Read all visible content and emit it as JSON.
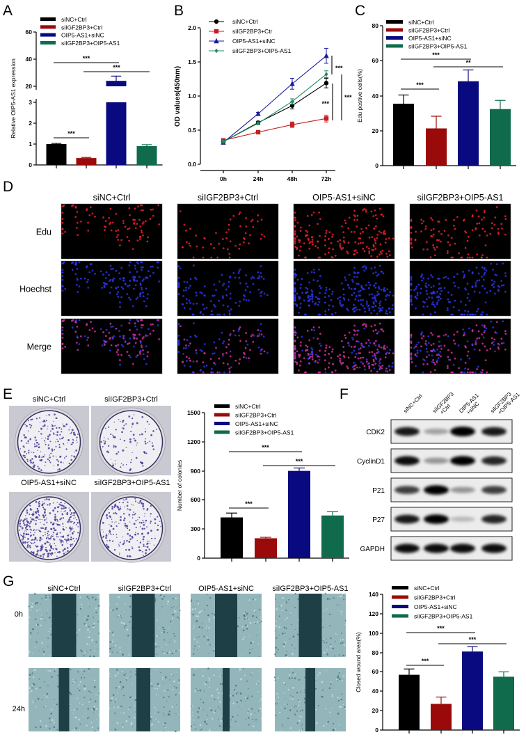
{
  "panels": {
    "A": "A",
    "B": "B",
    "C": "C",
    "D": "D",
    "E": "E",
    "F": "F",
    "G": "G"
  },
  "colors": {
    "siNC+Ctrl": "#000000",
    "siIGF2BP3+Ctrl": "#9b0a0a",
    "OIP5-AS1+siNC": "#0a0a80",
    "siIGF2BP3+OIP5-AS1": "#0f6b4c"
  },
  "chart_data": [
    {
      "id": "A",
      "type": "bar",
      "title": "",
      "ylabel": "Relative OIP5-AS1 expression",
      "xlabel": "",
      "legend": [
        "siNC+Ctrl",
        "siIGF2BP3+Ctrl",
        "OIP5-AS1+siNC",
        "siIGF2BP3+OIP5-AS1"
      ],
      "legend_placement": "top-left",
      "categories": [
        "siNC+Ctrl",
        "siIGF2BP3+Ctrl",
        "OIP5-AS1+siNC",
        "siIGF2BP3+OIP5-AS1"
      ],
      "values": [
        1.0,
        0.33,
        24.0,
        0.9
      ],
      "errors": [
        0.03,
        0.03,
        3.5,
        0.07
      ],
      "axis_break": [
        3,
        20
      ],
      "yticks": [
        "0",
        "1",
        "2",
        "3",
        "20",
        "40",
        "60"
      ],
      "ylim": [
        0,
        60
      ],
      "significance": [
        {
          "pair": [
            0,
            2
          ],
          "label": "***"
        },
        {
          "pair": [
            1,
            3
          ],
          "label": "***"
        },
        {
          "pair": [
            0,
            1
          ],
          "label": "***"
        }
      ]
    },
    {
      "id": "B",
      "type": "line",
      "title": "",
      "ylabel": "OD values(450nm)",
      "xlabel": "",
      "x": [
        "0h",
        "24h",
        "48h",
        "72h"
      ],
      "yticks": [
        "0.0",
        "0.5",
        "1.0",
        "1.5",
        "2.0"
      ],
      "ylim": [
        0,
        2.0
      ],
      "legend_placement": "top-left",
      "series": [
        {
          "name": "siNC+Ctrl",
          "marker": "circle",
          "values": [
            0.33,
            0.61,
            0.86,
            1.19
          ],
          "errors": [
            0.02,
            0.02,
            0.05,
            0.07
          ]
        },
        {
          "name": "siIGF2BP3+Ctr",
          "marker": "square",
          "values": [
            0.35,
            0.47,
            0.58,
            0.67
          ],
          "errors": [
            0.02,
            0.02,
            0.04,
            0.05
          ]
        },
        {
          "name": "OIP5-AS1+siNC",
          "marker": "triangle",
          "values": [
            0.32,
            0.74,
            1.18,
            1.59
          ],
          "errors": [
            0.02,
            0.02,
            0.08,
            0.11
          ]
        },
        {
          "name": "siIGF2BP3+OIP5-AS1",
          "marker": "diamond",
          "values": [
            0.33,
            0.6,
            0.92,
            1.32
          ],
          "errors": [
            0.02,
            0.02,
            0.04,
            0.05
          ]
        }
      ],
      "significance": [
        {
          "label": "***"
        },
        {
          "label": "***"
        },
        {
          "label": "***"
        }
      ]
    },
    {
      "id": "C",
      "type": "bar",
      "title": "",
      "ylabel": "Edu postive cells(%)",
      "xlabel": "",
      "legend": [
        "siNC+Ctrl",
        "siIGF2BP3+Ctrl",
        "OIP5-AS1+siNC",
        "siIGF2BP3+OIP5-AS1"
      ],
      "legend_placement": "top-left",
      "categories": [
        "siNC+Ctrl",
        "siIGF2BP3+Ctrl",
        "OIP5-AS1+siNC",
        "siIGF2BP3+OIP5-AS1"
      ],
      "values": [
        35.6,
        21.4,
        48.5,
        32.5
      ],
      "errors": [
        5.0,
        7.0,
        6.5,
        5.0
      ],
      "yticks": [
        "0",
        "20",
        "40",
        "60",
        "80"
      ],
      "ylim": [
        0,
        80
      ],
      "significance": [
        {
          "pair": [
            0,
            2
          ],
          "label": "***"
        },
        {
          "pair": [
            1,
            3
          ],
          "label": "**"
        },
        {
          "pair": [
            0,
            1
          ],
          "label": "***"
        }
      ]
    },
    {
      "id": "E",
      "type": "bar",
      "title": "",
      "ylabel": "Number of colonies",
      "xlabel": "",
      "legend": [
        "siNC+Ctrl",
        "siIGF2BP3+Ctrl",
        "OIP5-AS1+siNC",
        "siIGF2BP3+OIP5-AS1"
      ],
      "legend_placement": "top-left",
      "categories": [
        "siNC+Ctrl",
        "siIGF2BP3+Ctrl",
        "OIP5-AS1+siNC",
        "siIGF2BP3+OIP5-AS1"
      ],
      "values": [
        420,
        205,
        900,
        440
      ],
      "errors": [
        45,
        10,
        30,
        40
      ],
      "yticks": [
        "0",
        "300",
        "600",
        "900",
        "1200",
        "1500"
      ],
      "ylim": [
        0,
        1500
      ],
      "significance": [
        {
          "pair": [
            0,
            2
          ],
          "label": "***"
        },
        {
          "pair": [
            1,
            3
          ],
          "label": "***"
        },
        {
          "pair": [
            0,
            1
          ],
          "label": "***"
        }
      ]
    },
    {
      "id": "G",
      "type": "bar",
      "title": "",
      "ylabel": "Closed wound area(%)",
      "xlabel": "",
      "legend": [
        "siNC+Ctrl",
        "siIGF2BP3+Ctrl",
        "OIP5-AS1+siNC",
        "siIGF2BP3+OIP5-AS1"
      ],
      "legend_placement": "top-left",
      "categories": [
        "siNC+Ctrl",
        "siIGF2BP3+Ctrl",
        "OIP5-AS1+siNC",
        "siIGF2BP3+OIP5-AS1"
      ],
      "values": [
        57,
        27,
        81,
        55
      ],
      "errors": [
        6,
        7,
        5,
        5
      ],
      "yticks": [
        "0",
        "20",
        "40",
        "60",
        "80",
        "100",
        "120",
        "140"
      ],
      "ylim": [
        0,
        140
      ],
      "significance": [
        {
          "pair": [
            0,
            2
          ],
          "label": "***"
        },
        {
          "pair": [
            1,
            3
          ],
          "label": "***"
        },
        {
          "pair": [
            0,
            1
          ],
          "label": "***"
        }
      ]
    }
  ],
  "panel_d": {
    "columns": [
      "siNC+Ctrl",
      "siIGF2BP3+Ctrl",
      "OIP5-AS1+siNC",
      "siIGF2BP3+OIP5-AS1"
    ],
    "rows": [
      "Edu",
      "Hoechst",
      "Merge"
    ]
  },
  "panel_e": {
    "plates": [
      "siNC+Ctrl",
      "siIGF2BP3+Ctrl",
      "OIP5-AS1+siNC",
      "siIGF2BP3+OIP5-AS1"
    ]
  },
  "panel_f": {
    "lanes": [
      [
        "siNC+Ctrl"
      ],
      [
        "siIGF2BP3",
        "+Ctrl"
      ],
      [
        "OIP5-AS1",
        "+siNC"
      ],
      [
        "siIGF2BP3",
        "+OIP5-AS1"
      ]
    ],
    "proteins": [
      {
        "name": "CDK2",
        "intensity": [
          0.85,
          0.3,
          1.0,
          0.85
        ]
      },
      {
        "name": "CyclinD1",
        "intensity": [
          0.9,
          0.35,
          0.95,
          0.8
        ]
      },
      {
        "name": "P21",
        "intensity": [
          0.7,
          0.95,
          0.35,
          0.7
        ]
      },
      {
        "name": "P27",
        "intensity": [
          0.85,
          0.95,
          0.2,
          0.8
        ]
      },
      {
        "name": "GAPDH",
        "intensity": [
          0.9,
          0.9,
          0.9,
          0.9
        ]
      }
    ]
  },
  "panel_g": {
    "columns": [
      "siNC+Ctrl",
      "siIGF2BP3+Ctrl",
      "OIP5-AS1+siNC",
      "siIGF2BP3+OIP5-AS1"
    ],
    "rows": [
      "0h",
      "24h"
    ]
  }
}
